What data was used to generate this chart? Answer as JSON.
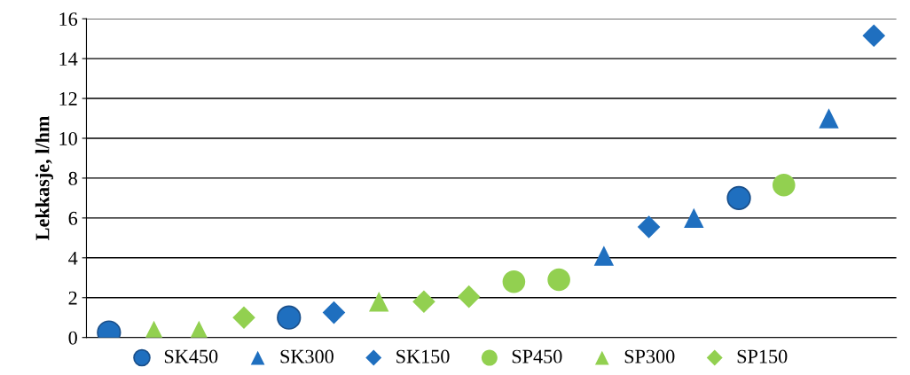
{
  "chart_data": {
    "type": "scatter",
    "ylabel": "Lekkasje, l/hm",
    "categories": [
      null,
      null,
      null,
      null,
      null,
      null,
      null,
      null,
      null,
      null,
      null,
      null,
      null,
      null,
      null,
      null,
      null,
      null
    ],
    "ylim": [
      0,
      16
    ],
    "yticks": [
      0,
      2,
      4,
      6,
      8,
      10,
      12,
      14,
      16
    ],
    "grid": "y",
    "legend": "bottom",
    "tick_labels": "y",
    "series": [
      {
        "name": "SK450",
        "color": "#1f6fbf",
        "marker": "circle",
        "values": [
          0.25,
          null,
          null,
          null,
          1.0,
          null,
          null,
          null,
          null,
          null,
          null,
          null,
          null,
          null,
          7.0,
          null,
          null,
          null
        ]
      },
      {
        "name": "SK300",
        "color": "#1f6fbf",
        "marker": "triangle",
        "values": [
          null,
          null,
          null,
          null,
          null,
          null,
          null,
          null,
          null,
          null,
          null,
          4.1,
          null,
          6.0,
          null,
          null,
          11.0,
          null
        ]
      },
      {
        "name": "SK150",
        "color": "#1f6fbf",
        "marker": "diamond",
        "values": [
          null,
          null,
          null,
          null,
          null,
          1.25,
          null,
          null,
          null,
          null,
          null,
          null,
          5.55,
          null,
          null,
          null,
          null,
          15.15
        ]
      },
      {
        "name": "SP450",
        "color": "#92d050",
        "marker": "circle",
        "values": [
          null,
          null,
          null,
          null,
          null,
          null,
          null,
          null,
          null,
          2.8,
          2.9,
          null,
          null,
          null,
          null,
          7.65,
          null,
          null
        ]
      },
      {
        "name": "SP300",
        "color": "#92d050",
        "marker": "triangle",
        "values": [
          null,
          0.35,
          0.35,
          null,
          null,
          null,
          1.8,
          null,
          null,
          null,
          null,
          null,
          null,
          null,
          null,
          null,
          null,
          null
        ]
      },
      {
        "name": "SP150",
        "color": "#92d050",
        "marker": "diamond",
        "values": [
          null,
          null,
          null,
          1.0,
          null,
          null,
          null,
          1.8,
          2.05,
          null,
          null,
          null,
          null,
          null,
          null,
          null,
          null,
          null
        ]
      }
    ]
  }
}
